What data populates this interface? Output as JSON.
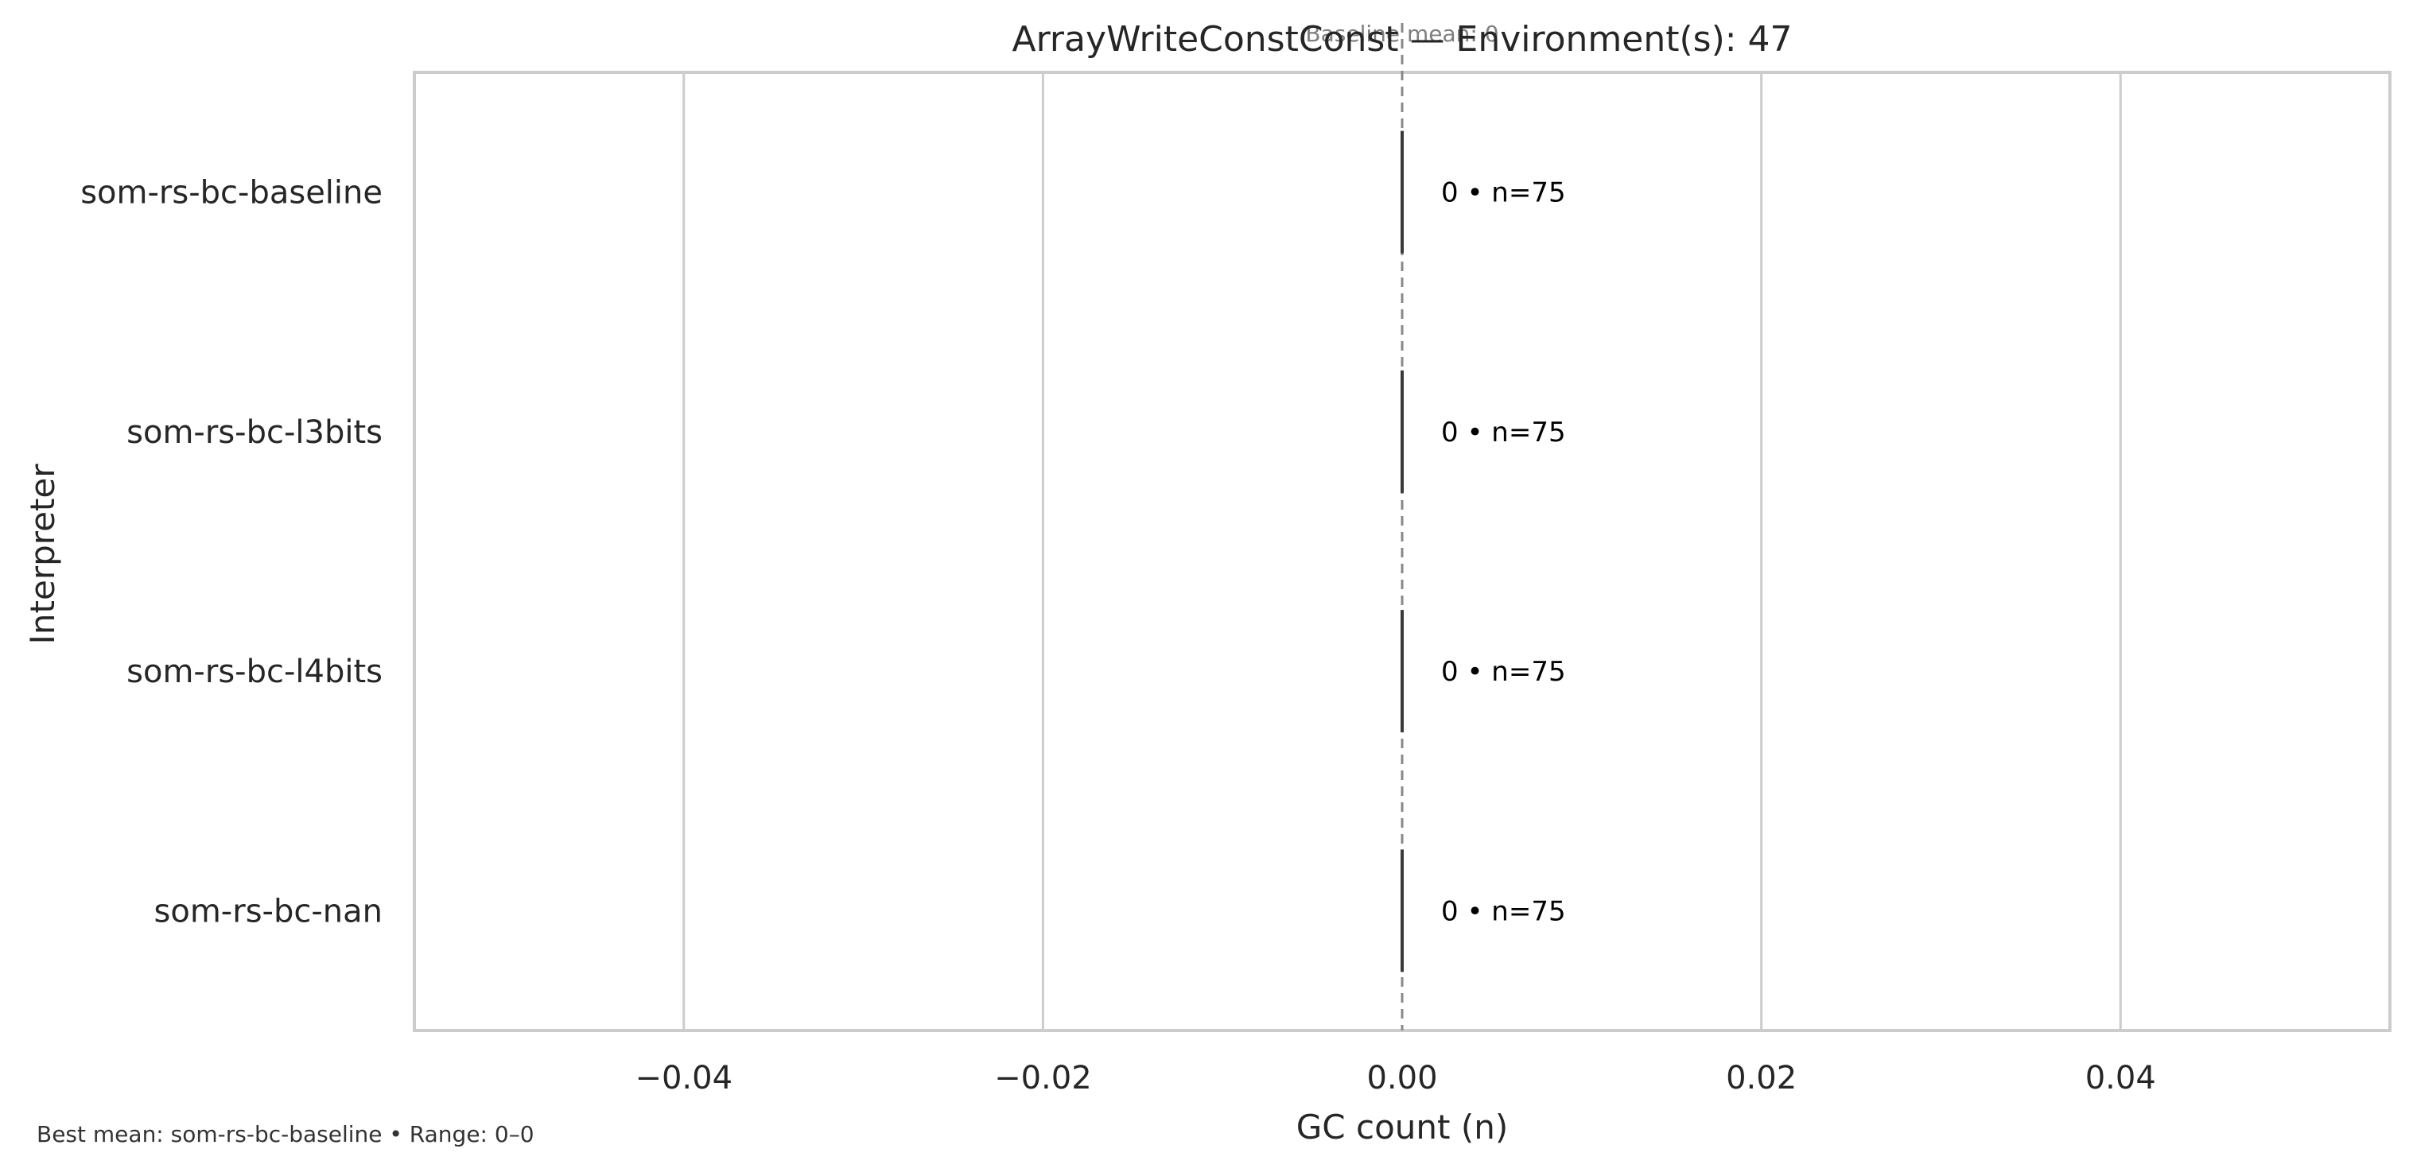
{
  "chart_data": {
    "type": "box",
    "orientation": "horizontal",
    "title": "ArrayWriteConstConst — Environment(s): 47",
    "xlabel": "GC count (n)",
    "ylabel": "Interpreter",
    "xlim": [
      -0.055,
      0.055
    ],
    "x_ticks": [
      -0.04,
      -0.02,
      0.0,
      0.02,
      0.04
    ],
    "x_tick_labels": [
      "−0.04",
      "−0.02",
      "0.00",
      "0.02",
      "0.04"
    ],
    "grid": "vertical",
    "categories": [
      "som-rs-bc-baseline",
      "som-rs-bc-l3bits",
      "som-rs-bc-l4bits",
      "som-rs-bc-nan"
    ],
    "values": [
      0,
      0,
      0,
      0
    ],
    "n": [
      75,
      75,
      75,
      75
    ],
    "data_labels": [
      "0 • n=75",
      "0 • n=75",
      "0 • n=75",
      "0 • n=75"
    ],
    "reference_line": {
      "value": 0,
      "label": "Baseline mean: 0",
      "style": "dashed"
    },
    "footnote": "Best mean: som-rs-bc-baseline • Range: 0–0",
    "colors": {
      "frame": "#cccccc",
      "grid": "#cccccc",
      "box": "#3a3a3a",
      "reference": "#888888"
    }
  }
}
